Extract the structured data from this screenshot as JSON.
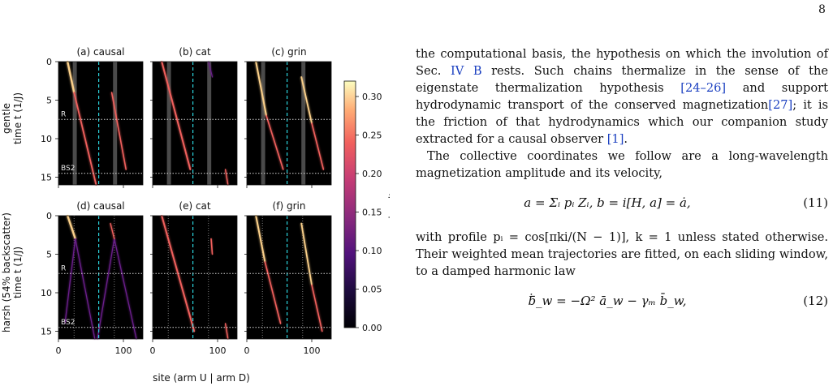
{
  "page": {
    "number": "8"
  },
  "figure": {
    "panels": [
      {
        "title": "(a) causal",
        "row": 0,
        "col": 0
      },
      {
        "title": "(b) cat",
        "row": 0,
        "col": 1
      },
      {
        "title": "(c) grin",
        "row": 0,
        "col": 2
      },
      {
        "title": "(d) causal",
        "row": 1,
        "col": 0
      },
      {
        "title": "(e) cat",
        "row": 1,
        "col": 1
      },
      {
        "title": "(f) grin",
        "row": 1,
        "col": 2
      }
    ],
    "row_labels": [
      "gentle\ntime t (1/J)",
      "harsh (54% backscatter)\ntime t (1/J)"
    ],
    "row_label_top": "gentle",
    "row_label_bottom": "harsh (54% backscatter)",
    "ylabel_top": "time t (1/J)",
    "ylabel_bottom": "time t (1/J)",
    "xlabel": "site  (arm U | arm D)",
    "x_ticks": [
      "0",
      "100"
    ],
    "y_ticks": [
      "0",
      "5",
      "10",
      "15"
    ],
    "marker_R": "R",
    "marker_BS2": "BS2",
    "colorbar": {
      "label": "density",
      "ticks": [
        "0.00",
        "0.05",
        "0.10",
        "0.15",
        "0.20",
        "0.25",
        "0.30"
      ],
      "min": 0.0,
      "max": 0.32
    },
    "colors": {
      "panel_bg": "#000000",
      "cyan_divider": "#2bd3dc",
      "gray_band": "#4a4a4a",
      "marker_line": "#d9d9d9"
    }
  },
  "text": {
    "p1": "the computational basis, the hypothesis on which the involution of Sec.",
    "p1_ref": "IV B",
    "p1b": "rests. Such chains thermalize in the sense of the eigenstate thermalization hypothesis",
    "p1_cite1": "[24–26]",
    "p1c": "and support hydrodynamic transport of the conserved magnetization",
    "p1_cite2": "[27]",
    "p1d": "; it is the friction of that hydrodynamics which our companion study extracted for a causal observer",
    "p1_cite3": "[1]",
    "p1e": ".",
    "p2": "The collective coordinates we follow are a long-wavelength magnetization amplitude and its velocity,",
    "eq11": "a = Σᵢ pᵢ Zᵢ,        b = i[H, a] = ȧ,",
    "eq11_num": "(11)",
    "p3": "with profile pᵢ = cos[πki/(N − 1)], k = 1 unless stated otherwise. Their weighted mean trajectories are fitted, on each sliding window, to a damped harmonic law",
    "eq12": "ḃ̄_w = −Ω² ā_w − γₘ b̄_w,",
    "eq12_num": "(12)"
  }
}
